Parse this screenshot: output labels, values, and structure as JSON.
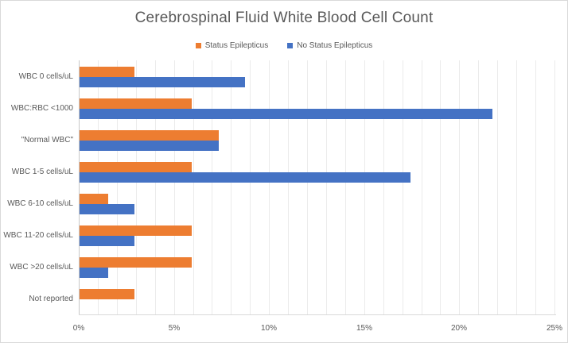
{
  "chart_data": {
    "type": "bar",
    "orientation": "horizontal",
    "title": "Cerebrospinal Fluid White Blood Cell Count",
    "categories": [
      "WBC 0 cells/uL",
      "WBC:RBC <1000",
      "\"Normal WBC\"",
      "WBC 1-5 cells/uL",
      "WBC 6-10 cells/uL",
      "WBC 11-20 cells/uL",
      "WBC >20 cells/uL",
      "Not reported"
    ],
    "series": [
      {
        "name": "Status Epilepticus",
        "color": "#ED7D31",
        "values": [
          2.9,
          5.9,
          7.3,
          5.9,
          1.5,
          5.9,
          5.9,
          2.9
        ]
      },
      {
        "name": "No Status Epilepticus",
        "color": "#4472C4",
        "values": [
          8.7,
          21.7,
          7.3,
          17.4,
          2.9,
          2.9,
          1.5,
          0
        ]
      }
    ],
    "xlabel": "",
    "ylabel": "",
    "xlim": [
      0,
      25
    ],
    "x_tick_values": [
      0,
      5,
      10,
      15,
      20,
      25
    ],
    "x_tick_labels": [
      "0%",
      "5%",
      "10%",
      "15%",
      "20%",
      "25%"
    ],
    "gridline_interval": 1,
    "grid": true,
    "legend_position": "top",
    "value_unit": "%"
  },
  "colors": {
    "text": "#595959",
    "gridline": "#ebebeb",
    "zero_axis_line": "#c9c9c9",
    "x_axis_line": "#d9d9d9",
    "background": "#ffffff",
    "border": "#d9d9d9"
  }
}
